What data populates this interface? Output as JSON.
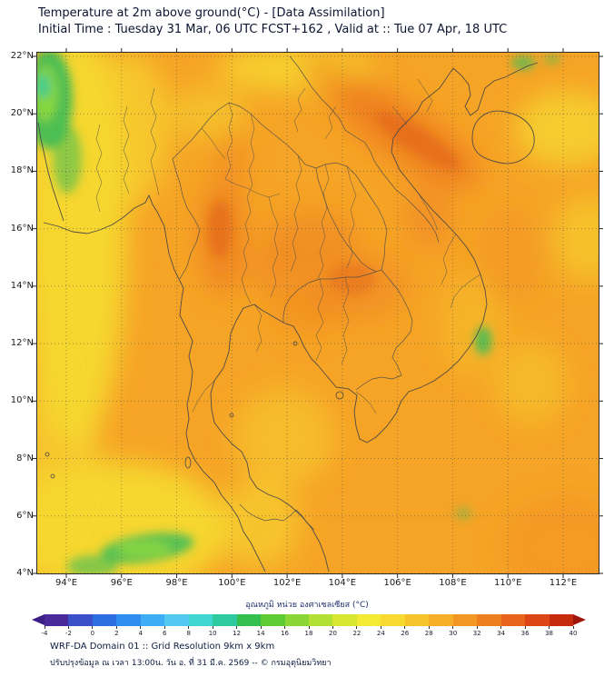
{
  "header": {
    "title": "Temperature at 2m above ground(°C) - [Data Assimilation]",
    "subtitle": "Initial Time : Tuesday 31 Mar, 06 UTC FCST+162 , Valid at :: Tue 07 Apr, 18 UTC"
  },
  "map": {
    "lon_ticks": [
      "94°E",
      "96°E",
      "98°E",
      "100°E",
      "102°E",
      "104°E",
      "106°E",
      "108°E",
      "110°E",
      "112°E"
    ],
    "lat_ticks": [
      "22°N",
      "20°N",
      "18°N",
      "16°N",
      "14°N",
      "12°N",
      "10°N",
      "8°N",
      "6°N",
      "4°N"
    ]
  },
  "palette": {
    "field-base": "#f6a426",
    "field-yellow": "#f6d930",
    "field-green": "#3cbd58",
    "field-green2": "#8fd93c",
    "field-teal": "#2fc9a0",
    "field-hot": "#ee7f1f",
    "field-hot2": "#e05e16",
    "field-warm": "#f39020"
  },
  "colorbar": {
    "title": "อุณหภูมิ หน่วย องศาเซลเซียส (°C)",
    "tick_labels": [
      "-4",
      "-2",
      "0",
      "2",
      "4",
      "6",
      "8",
      "10",
      "12",
      "14",
      "16",
      "18",
      "20",
      "22",
      "24",
      "26",
      "28",
      "30",
      "32",
      "34",
      "36",
      "38",
      "40"
    ],
    "segment_colors": [
      "#4a2a9b",
      "#3a50c8",
      "#2d6fe0",
      "#2f8ef0",
      "#3fadf5",
      "#55c8f2",
      "#3fd6d0",
      "#2fc9a0",
      "#35bf4f",
      "#5ecb34",
      "#8ad636",
      "#b2e034",
      "#d8e832",
      "#f2ea33",
      "#f8d92f",
      "#f8c42c",
      "#f6ad28",
      "#f39724",
      "#ee7f1f",
      "#e7641a",
      "#dc4514",
      "#c62b0e"
    ],
    "left_arrow_color": "#3b1d86",
    "right_arrow_color": "#9e150b"
  },
  "footer": {
    "line1": "WRF-DA Domain 01 :: Grid Resolution 9km x 9km",
    "line2": "ปรับปรุงข้อมูล ณ เวลา 13:00น. วัน อ. ที่ 31 มี.ค. 2569 -- © กรมอุตุนิยมวิทยา"
  },
  "chart_data": {
    "type": "heatmap",
    "title": "Temperature at 2m above ground(°C) - [Data Assimilation]",
    "subtitle": "Initial Time : Tuesday 31 Mar, 06 UTC FCST+162 , Valid at :: Tue 07 Apr, 18 UTC",
    "x_axis": {
      "label": "Longitude",
      "range_deg_e": [
        94,
        112
      ],
      "tick_step_deg": 2
    },
    "y_axis": {
      "label": "Latitude",
      "range_deg_n": [
        4,
        22
      ],
      "tick_step_deg": 2
    },
    "colorbar": {
      "label": "อุณหภูมิ หน่วย องศาเซลเซียส (°C)",
      "range_c": [
        -4,
        40
      ],
      "tick_step_c": 2
    },
    "units": "°C",
    "field_summary": [
      {
        "region": "dominant land/sea field over domain",
        "approx_temp_c": 30
      },
      {
        "region": "west edge / Bay of Bengal yellow band",
        "approx_temp_c": 26
      },
      {
        "region": "NW Vietnam - Laos highland dark-orange band",
        "approx_temp_c": 34
      },
      {
        "region": "western Thailand (≈99°E, 15-17°N) dark-orange",
        "approx_temp_c": 34
      },
      {
        "region": "NE Thailand / central plateau",
        "approx_temp_c": 32
      },
      {
        "region": "far NW corner green patch (≈94°E, 21°N)",
        "approx_temp_c": 16
      },
      {
        "region": "SW sea green streak (≈97°E, 4-5°N)",
        "approx_temp_c": 18
      },
      {
        "region": "Vietnam coast green spot (≈108°E, 12°N)",
        "approx_temp_c": 18
      },
      {
        "region": "upper-right yellow patches (South China Sea)",
        "approx_temp_c": 26
      }
    ]
  }
}
